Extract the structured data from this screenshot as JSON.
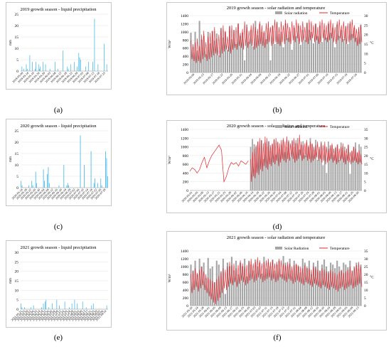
{
  "captions": [
    "(a)",
    "(b)",
    "(c)",
    "(d)",
    "(e)",
    "(f)"
  ],
  "chart_data": [
    {
      "id": "a",
      "type": "bar",
      "title": "2019 growth season - liquid precipitation",
      "ylabel": "mm",
      "ylim": [
        0,
        25
      ],
      "yticks": [
        0,
        5,
        10,
        15,
        20,
        25
      ],
      "color": "#41b6e6",
      "xticks": [
        "2019-05-09",
        "2019-05-14",
        "2019-05-19",
        "2019-05-24",
        "2019-05-29",
        "2019-06-03",
        "2019-06-08",
        "2019-06-13",
        "2019-06-18",
        "2019-06-23",
        "2019-06-28",
        "2019-07-03",
        "2019-07-08",
        "2019-07-13",
        "2019-07-18",
        "2019-07-23"
      ],
      "values": [
        0,
        2,
        0,
        1,
        0,
        0,
        3,
        1,
        0,
        0,
        7,
        0,
        0,
        4,
        0,
        0,
        1,
        4,
        0,
        0,
        3,
        1,
        2,
        0,
        0,
        4,
        0,
        0,
        3,
        0,
        0,
        0,
        0,
        1,
        0,
        0,
        0,
        0,
        0,
        4,
        0,
        0,
        1,
        0,
        0,
        0,
        0,
        0,
        9,
        0,
        0,
        0,
        0,
        2,
        1,
        0,
        0,
        3,
        0,
        0,
        0,
        4,
        0,
        0,
        2,
        0,
        8,
        6,
        5,
        0,
        0,
        0,
        0,
        0,
        2,
        0,
        0,
        4,
        0,
        0,
        0,
        0,
        4,
        0,
        23,
        0,
        0,
        0,
        3,
        0,
        0,
        0,
        0,
        0,
        0,
        12,
        0,
        0,
        3,
        0
      ]
    },
    {
      "id": "b",
      "type": "bar+line",
      "title": "2019 growth season - solar radiation and temperature",
      "ylabel": "W/m²",
      "y2label": "°C",
      "ylim": [
        0,
        1400
      ],
      "yticks": [
        0,
        200,
        400,
        600,
        800,
        1000,
        1200,
        1400
      ],
      "y2lim": [
        0,
        30
      ],
      "y2ticks": [
        0,
        5,
        10,
        15,
        20,
        25,
        30
      ],
      "legend": [
        "Solar radiation",
        "Temperature"
      ],
      "bar_color": "#a6a6a6",
      "line_color": "#e8242c",
      "xticks": [
        "2019-05-09",
        "2019-05-13",
        "2019-05-17",
        "2019-05-22",
        "2019-05-26",
        "2019-05-31",
        "2019-06-04",
        "2019-06-09",
        "2019-06-13",
        "2019-06-18",
        "2019-06-22",
        "2019-06-27",
        "2019-07-01",
        "2019-07-06",
        "2019-07-10",
        "2019-07-15",
        "2019-07-19",
        "2019-07-24"
      ],
      "bars": [
        980,
        620,
        1000,
        540,
        1270,
        800,
        900,
        450,
        1000,
        720,
        1020,
        780,
        960,
        420,
        1100,
        860,
        1000,
        560,
        1150,
        820,
        1050,
        700,
        1200,
        900,
        980,
        300,
        1180,
        760,
        1050,
        640,
        1270,
        920,
        1200,
        1000,
        980,
        820,
        1100,
        300,
        1150,
        700,
        1250,
        950,
        1000,
        620,
        1200,
        850,
        1000,
        560,
        1100,
        900,
        1150,
        680,
        1050,
        800,
        1230,
        1050,
        1000,
        720,
        1190,
        900,
        1150,
        750,
        1050,
        860,
        1200,
        980,
        1100,
        620,
        1180,
        900,
        1050,
        820,
        1150,
        700,
        1200,
        950,
        1100,
        860,
        1000,
        1180
      ],
      "temp_low": [
        7,
        6,
        5,
        6,
        5,
        7,
        8,
        6,
        7,
        8,
        9,
        10,
        9,
        8,
        10,
        11,
        12,
        11,
        10,
        12,
        13,
        12,
        14,
        13,
        12,
        14,
        13,
        15,
        14,
        12,
        13,
        14,
        15,
        14,
        13,
        15,
        16,
        14,
        15,
        16,
        15,
        14,
        16,
        15,
        17,
        16,
        15,
        17,
        16,
        18,
        15,
        16,
        17,
        16,
        15,
        17,
        18,
        16,
        17,
        15,
        16,
        18,
        17,
        16,
        17,
        18,
        16,
        15,
        17,
        18,
        16,
        17,
        15,
        16,
        17,
        18,
        16,
        14,
        15,
        16
      ],
      "temp_high": [
        17,
        15,
        16,
        18,
        14,
        20,
        22,
        16,
        19,
        21,
        22,
        24,
        18,
        20,
        23,
        25,
        22,
        19,
        24,
        25,
        22,
        24,
        26,
        21,
        23,
        27,
        24,
        22,
        25,
        26,
        24,
        23,
        27,
        25,
        22,
        26,
        27,
        24,
        25,
        28,
        26,
        24,
        27,
        25,
        28,
        26,
        24,
        27,
        25,
        28,
        26,
        25,
        27,
        24,
        26,
        28,
        27,
        25,
        26,
        24,
        27,
        28,
        26,
        25,
        27,
        28,
        26,
        24,
        27,
        28,
        25,
        27,
        24,
        26,
        27,
        28,
        25,
        23,
        24,
        25
      ]
    },
    {
      "id": "c",
      "type": "bar",
      "title": "2020 growth season - liquid precipitation",
      "ylabel": "mm",
      "ylim": [
        0,
        25
      ],
      "yticks": [
        0,
        5,
        10,
        15,
        20,
        25
      ],
      "color": "#41b6e6",
      "xticks": [
        "2020-05-14",
        "2020-05-18",
        "2020-05-22",
        "2020-05-26",
        "2020-05-30",
        "2020-06-04",
        "2020-06-08",
        "2020-06-12",
        "2020-06-16",
        "2020-06-20",
        "2020-06-24",
        "2020-06-28",
        "2020-07-02",
        "2020-07-06",
        "2020-07-10",
        "2020-07-14",
        "2020-07-18",
        "2020-07-22",
        "2020-07-26",
        "2020-07-29"
      ],
      "values": [
        3,
        1,
        0,
        0,
        0,
        0,
        0,
        0,
        1,
        0,
        0,
        3,
        1,
        0,
        0,
        7,
        2,
        0,
        0,
        0,
        0,
        0,
        0,
        8,
        3,
        0,
        0,
        6,
        9,
        2,
        0,
        0,
        0,
        0,
        0,
        0,
        0,
        0,
        0,
        1,
        0,
        0,
        0,
        0,
        10,
        0,
        0,
        1,
        2,
        1,
        0,
        0,
        0,
        0,
        0,
        0,
        0,
        0,
        0,
        0,
        0,
        23,
        0,
        0,
        0,
        10,
        0,
        0,
        0,
        0,
        0,
        0,
        16,
        0,
        0,
        2,
        4,
        0,
        0,
        2,
        0,
        0,
        4,
        1,
        0,
        0,
        0,
        16,
        13,
        5
      ]
    },
    {
      "id": "d",
      "type": "bar+line",
      "title": "2020 growth season - solar radiation and temperature",
      "ylabel": "W/m²",
      "y2label": "°C",
      "ylim": [
        0,
        1400
      ],
      "yticks": [
        0,
        200,
        400,
        600,
        800,
        1000,
        1200,
        1400
      ],
      "y2lim": [
        0,
        35
      ],
      "y2ticks": [
        0,
        5,
        10,
        15,
        20,
        25,
        30,
        35
      ],
      "legend": [
        "Solar radiation",
        "Temperature"
      ],
      "bar_color": "#a6a6a6",
      "line_color": "#e8242c",
      "xticks": [
        "2020-05-01",
        "2020-05-05",
        "2020-05-09",
        "2020-05-13",
        "2020-05-17",
        "2020-05-21",
        "2020-05-25",
        "2020-05-29",
        "2020-06-02",
        "2020-06-06",
        "2020-06-10",
        "2020-06-14",
        "2020-06-18",
        "2020-06-22",
        "2020-06-26",
        "2020-06-30",
        "2020-07-04",
        "2020-07-08",
        "2020-07-12",
        "2020-07-16",
        "2020-07-20",
        "2020-07-24",
        "2020-07-28",
        "2020-08-01",
        "2020-08-05",
        "2020-08-09",
        "2020-08-13",
        "2020-08-17",
        "2020-08-21",
        "2020-08-25",
        "2020-08-30"
      ],
      "early_temp": [
        11,
        13,
        12,
        10,
        12,
        16,
        19,
        13,
        17,
        20,
        22,
        24,
        26,
        23,
        5,
        8,
        13,
        16,
        15,
        16,
        14,
        17,
        16,
        15,
        17
      ],
      "bars": [
        1000,
        1180,
        1060,
        1000,
        1120,
        980,
        1150,
        720,
        1100,
        1000,
        1130,
        900,
        1060,
        1180,
        820,
        1100,
        950,
        1040,
        1160,
        880,
        1000,
        1120,
        760,
        1150,
        1000,
        1080,
        1200,
        940,
        1040,
        1130,
        800,
        1100,
        1000,
        1200,
        1060,
        920,
        1160,
        700,
        1000,
        1120,
        580,
        1000,
        400,
        1120,
        960,
        1040,
        820,
        980,
        1060,
        700,
        1100,
        980,
        1000,
        820,
        1050,
        380,
        900,
        1000,
        1100,
        860,
        1060,
        1000
      ],
      "temp_low": [
        5,
        8,
        7,
        10,
        9,
        12,
        11,
        14,
        13,
        12,
        15,
        14,
        16,
        15,
        17,
        14,
        16,
        18,
        17,
        16,
        18,
        17,
        19,
        18,
        16,
        17,
        18,
        20,
        17,
        18,
        19,
        17,
        18,
        16,
        17,
        18,
        19,
        17,
        18,
        16,
        17,
        15,
        16,
        17,
        18,
        16,
        17,
        15,
        16,
        17,
        18,
        16,
        15,
        17,
        16,
        15,
        16,
        17,
        16,
        15,
        16,
        15
      ],
      "temp_high": [
        18,
        22,
        24,
        26,
        28,
        30,
        29,
        27,
        31,
        30,
        28,
        26,
        27,
        29,
        30,
        28,
        27,
        29,
        30,
        28,
        31,
        29,
        27,
        28,
        30,
        29,
        27,
        32,
        28,
        26,
        27,
        29,
        26,
        28,
        27,
        25,
        26,
        28,
        24,
        27,
        26,
        28,
        25,
        24,
        26,
        27,
        24,
        25,
        26,
        24,
        25,
        27,
        23,
        24,
        26,
        22,
        23,
        25,
        24,
        22,
        23,
        21
      ]
    },
    {
      "id": "e",
      "type": "bar",
      "title": "2021 growth season - liquid precipitation",
      "ylabel": "mm",
      "ylim": [
        0,
        30
      ],
      "yticks": [
        0,
        5,
        10,
        15,
        20,
        25,
        30
      ],
      "color": "#41b6e6",
      "xticks": [
        "2021-05-21",
        "2021-05-25",
        "2021-05-29",
        "2021-06-02",
        "2021-06-06",
        "2021-06-10",
        "2021-06-14",
        "2021-06-18",
        "2021-06-22",
        "2021-06-26",
        "2021-06-30",
        "2021-07-04",
        "2021-07-08",
        "2021-07-12",
        "2021-07-16",
        "2021-07-20",
        "2021-07-24",
        "2021-07-28",
        "2021-08-01",
        "2021-08-05",
        "2021-08-09",
        "2021-08-13",
        "2021-08-17",
        "2021-08-21",
        "2021-08-25",
        "2021-08-29",
        "2021-09-02",
        "2021-09-06",
        "2021-09-10"
      ],
      "values": [
        3,
        1,
        0,
        0,
        1,
        0,
        0,
        0,
        0,
        0,
        0,
        1,
        0,
        0,
        2,
        0,
        0,
        0,
        0,
        0,
        0,
        0,
        0,
        1,
        0,
        3,
        0,
        4,
        5,
        0,
        0,
        1,
        0,
        0,
        0,
        3,
        0,
        0,
        0,
        0,
        5,
        0,
        0,
        2,
        0,
        0,
        0,
        0,
        0,
        4,
        0,
        0,
        0,
        0,
        1,
        0,
        0,
        3,
        0,
        0,
        5,
        0,
        0,
        3,
        0,
        0,
        0,
        0,
        0,
        4,
        0,
        0,
        0,
        1,
        0,
        0,
        0,
        0,
        0,
        2,
        0,
        3,
        0,
        0,
        0,
        0,
        0,
        0,
        0,
        0,
        0,
        0,
        0,
        0,
        0,
        0,
        2,
        0
      ]
    },
    {
      "id": "f",
      "type": "bar+line",
      "title": "2021 growth season - solar radiation and temperature",
      "ylabel": "W/m²",
      "y2label": "°C",
      "ylim": [
        0,
        1400
      ],
      "yticks": [
        0,
        200,
        400,
        600,
        800,
        1000,
        1200,
        1400
      ],
      "y2lim": [
        0,
        35
      ],
      "y2ticks": [
        0,
        5,
        10,
        15,
        20,
        25,
        30,
        35
      ],
      "legend": [
        "Solar Radiation",
        "Temperature"
      ],
      "bar_color": "#a6a6a6",
      "line_color": "#e8242c",
      "xticks": [
        "2021-05-20",
        "2021-05-24",
        "2021-05-28",
        "2021-06-01",
        "2021-06-05",
        "2021-06-09",
        "2021-06-13",
        "2021-06-17",
        "2021-06-21",
        "2021-06-25",
        "2021-06-29",
        "2021-07-03",
        "2021-07-07",
        "2021-07-11",
        "2021-07-15",
        "2021-07-19",
        "2021-07-23",
        "2021-07-27",
        "2021-07-31",
        "2021-08-04",
        "2021-08-08",
        "2021-08-12",
        "2021-08-16",
        "2021-08-20",
        "2021-08-24",
        "2021-08-28",
        "2021-09-01",
        "2021-09-05",
        "2021-09-09",
        "2021-09-13"
      ],
      "bars": [
        1050,
        900,
        1150,
        800,
        1200,
        1000,
        1100,
        700,
        1220,
        950,
        1000,
        600,
        1150,
        1050,
        880,
        1200,
        300,
        1100,
        1000,
        1250,
        900,
        1150,
        800,
        1100,
        1000,
        1200,
        750,
        1150,
        1050,
        900,
        1180,
        1000,
        1100,
        820,
        1250,
        950,
        1100,
        1000,
        1180,
        900,
        1050,
        1150,
        800,
        1270,
        1100,
        1000,
        1200,
        900,
        1150,
        1050,
        1000,
        850,
        1200,
        1100,
        960,
        1150,
        800,
        1100,
        1000,
        1150,
        900,
        1050,
        1180,
        1000,
        880,
        1100,
        1050,
        960,
        1150,
        1000,
        900,
        1100,
        1050,
        980,
        1150,
        900,
        1000,
        1100,
        950,
        1050
      ],
      "temp_low": [
        8,
        10,
        12,
        9,
        11,
        13,
        10,
        8,
        6,
        4,
        2,
        1,
        3,
        5,
        8,
        11,
        10,
        12,
        14,
        13,
        15,
        12,
        14,
        16,
        15,
        13,
        14,
        16,
        17,
        15,
        16,
        18,
        17,
        15,
        16,
        17,
        18,
        16,
        17,
        15,
        16,
        18,
        17,
        16,
        15,
        17,
        16,
        14,
        15,
        16,
        15,
        14,
        13,
        15,
        14,
        13,
        12,
        14,
        13,
        12,
        11,
        13,
        12,
        11,
        10,
        12,
        11,
        10,
        9,
        11,
        12,
        10,
        11,
        12,
        13,
        11,
        12,
        13,
        14,
        12
      ],
      "temp_high": [
        20,
        22,
        24,
        21,
        23,
        25,
        22,
        20,
        18,
        17,
        16,
        15,
        17,
        19,
        21,
        24,
        23,
        25,
        28,
        26,
        27,
        24,
        26,
        29,
        27,
        25,
        26,
        28,
        30,
        27,
        28,
        31,
        29,
        27,
        28,
        29,
        30,
        28,
        29,
        27,
        28,
        30,
        29,
        27,
        26,
        28,
        27,
        25,
        26,
        27,
        26,
        25,
        24,
        26,
        25,
        24,
        23,
        25,
        24,
        23,
        22,
        24,
        23,
        22,
        21,
        23,
        22,
        21,
        20,
        22,
        23,
        21,
        22,
        23,
        25,
        22,
        24,
        26,
        28,
        25
      ]
    }
  ]
}
